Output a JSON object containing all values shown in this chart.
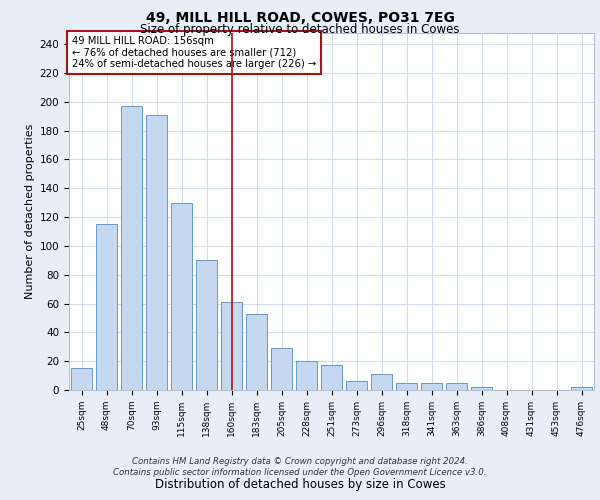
{
  "title1": "49, MILL HILL ROAD, COWES, PO31 7EG",
  "title2": "Size of property relative to detached houses in Cowes",
  "xlabel": "Distribution of detached houses by size in Cowes",
  "ylabel": "Number of detached properties",
  "categories": [
    "25sqm",
    "48sqm",
    "70sqm",
    "93sqm",
    "115sqm",
    "138sqm",
    "160sqm",
    "183sqm",
    "205sqm",
    "228sqm",
    "251sqm",
    "273sqm",
    "296sqm",
    "318sqm",
    "341sqm",
    "363sqm",
    "386sqm",
    "408sqm",
    "431sqm",
    "453sqm",
    "476sqm"
  ],
  "values": [
    15,
    115,
    197,
    191,
    130,
    90,
    61,
    53,
    29,
    20,
    17,
    6,
    11,
    5,
    5,
    5,
    2,
    0,
    0,
    0,
    2
  ],
  "bar_color": "#c5d8f0",
  "bar_edge_color": "#6699cc",
  "highlight_index": 6,
  "highlight_line_color": "#aa1111",
  "annotation_text": "49 MILL HILL ROAD: 156sqm\n← 76% of detached houses are smaller (712)\n24% of semi-detached houses are larger (226) →",
  "annotation_box_color": "#ffffff",
  "annotation_box_edge_color": "#aa1111",
  "ylim": [
    0,
    248
  ],
  "yticks": [
    0,
    20,
    40,
    60,
    80,
    100,
    120,
    140,
    160,
    180,
    200,
    220,
    240
  ],
  "footer_text": "Contains HM Land Registry data © Crown copyright and database right 2024.\nContains public sector information licensed under the Open Government Licence v3.0.",
  "background_color": "#e8eef8",
  "plot_bg_color": "#ffffff",
  "grid_color": "#c8d4e8"
}
